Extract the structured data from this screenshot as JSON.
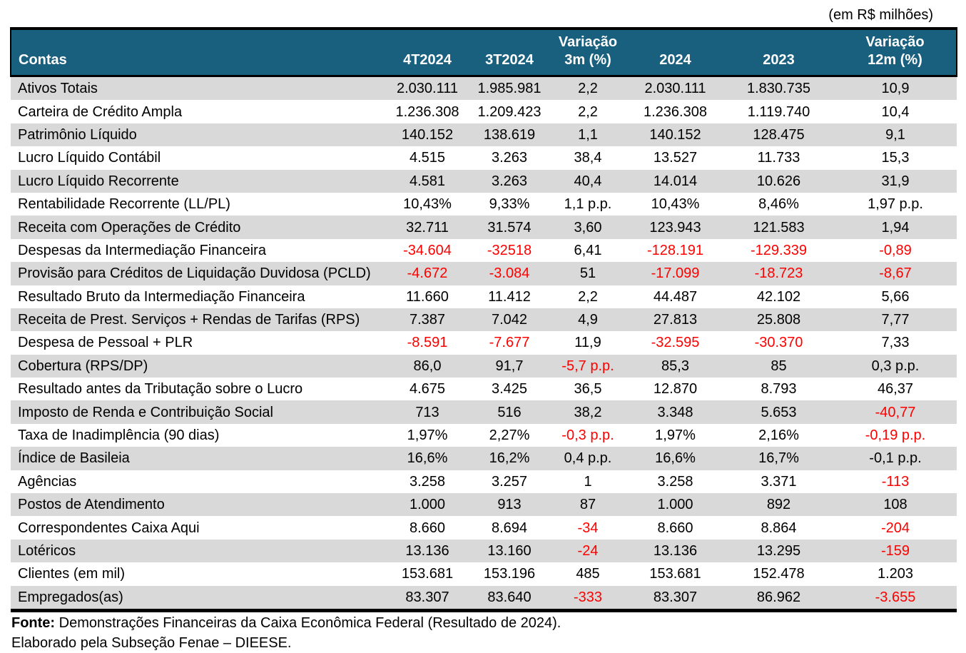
{
  "note": "(em R$ milhões)",
  "colors": {
    "header_bg": "#19607F",
    "header_text": "#FFFFFF",
    "row_alt_bg": "#D9D9D9",
    "negative_text": "#FF0000",
    "border": "#000000"
  },
  "table": {
    "headers": [
      "Contas",
      "4T2024",
      "3T2024",
      "Variação\n3m (%)",
      "2024",
      "2023",
      "Variação\n12m (%)"
    ],
    "rows": [
      {
        "label": "Ativos Totais",
        "values": [
          "2.030.111",
          "1.985.981",
          "2,2",
          "2.030.111",
          "1.830.735",
          "10,9"
        ],
        "red": []
      },
      {
        "label": "Carteira de Crédito Ampla",
        "values": [
          "1.236.308",
          "1.209.423",
          "2,2",
          "1.236.308",
          "1.119.740",
          "10,4"
        ],
        "red": []
      },
      {
        "label": "Patrimônio Líquido",
        "values": [
          "140.152",
          "138.619",
          "1,1",
          "140.152",
          "128.475",
          "9,1"
        ],
        "red": []
      },
      {
        "label": "Lucro Líquido Contábil",
        "values": [
          "4.515",
          "3.263",
          "38,4",
          "13.527",
          "11.733",
          "15,3"
        ],
        "red": []
      },
      {
        "label": "Lucro Líquido Recorrente",
        "values": [
          "4.581",
          "3.263",
          "40,4",
          "14.014",
          "10.626",
          "31,9"
        ],
        "red": []
      },
      {
        "label": "Rentabilidade Recorrente (LL/PL)",
        "values": [
          "10,43%",
          "9,33%",
          "1,1 p.p.",
          "10,43%",
          "8,46%",
          "1,97 p.p."
        ],
        "red": []
      },
      {
        "label": "Receita com Operações de Crédito",
        "values": [
          "32.711",
          "31.574",
          "3,60",
          "123.943",
          "121.583",
          "1,94"
        ],
        "red": []
      },
      {
        "label": "Despesas da Intermediação Financeira",
        "values": [
          "-34.604",
          "-32518",
          "6,41",
          "-128.191",
          "-129.339",
          "-0,89"
        ],
        "red": [
          0,
          1,
          3,
          4,
          5
        ]
      },
      {
        "label": "Provisão para Créditos de Liquidação Duvidosa (PCLD)",
        "values": [
          "-4.672",
          "-3.084",
          "51",
          "-17.099",
          "-18.723",
          "-8,67"
        ],
        "red": [
          0,
          1,
          3,
          4,
          5
        ]
      },
      {
        "label": "Resultado Bruto da Intermediação Financeira",
        "values": [
          "11.660",
          "11.412",
          "2,2",
          "44.487",
          "42.102",
          "5,66"
        ],
        "red": []
      },
      {
        "label": "Receita de Prest. Serviços + Rendas de Tarifas (RPS)",
        "values": [
          "7.387",
          "7.042",
          "4,9",
          "27.813",
          "25.808",
          "7,77"
        ],
        "red": []
      },
      {
        "label": "Despesa de Pessoal + PLR",
        "values": [
          "-8.591",
          "-7.677",
          "11,9",
          "-32.595",
          "-30.370",
          "7,33"
        ],
        "red": [
          0,
          1,
          3,
          4
        ]
      },
      {
        "label": "Cobertura (RPS/DP)",
        "values": [
          "86,0",
          "91,7",
          "-5,7 p.p.",
          "85,3",
          "85",
          "0,3 p.p."
        ],
        "red": [
          2
        ]
      },
      {
        "label": "Resultado antes da Tributação sobre o Lucro",
        "values": [
          "4.675",
          "3.425",
          "36,5",
          "12.870",
          "8.793",
          "46,37"
        ],
        "red": []
      },
      {
        "label": "Imposto de Renda e Contribuição Social",
        "values": [
          "713",
          "516",
          "38,2",
          "3.348",
          "5.653",
          "-40,77"
        ],
        "red": [
          5
        ]
      },
      {
        "label": "Taxa de Inadimplência (90 dias)",
        "values": [
          "1,97%",
          "2,27%",
          "-0,3 p.p.",
          "1,97%",
          "2,16%",
          "-0,19 p.p."
        ],
        "red": [
          2,
          5
        ]
      },
      {
        "label": "Índice de Basileia",
        "values": [
          "16,6%",
          "16,2%",
          "0,4 p.p.",
          "16,6%",
          "16,7%",
          "-0,1 p.p."
        ],
        "red": []
      },
      {
        "label": "Agências",
        "values": [
          "3.258",
          "3.257",
          "1",
          "3.258",
          "3.371",
          "-113"
        ],
        "red": [
          5
        ]
      },
      {
        "label": "Postos de Atendimento",
        "values": [
          "1.000",
          "913",
          "87",
          "1.000",
          "892",
          "108"
        ],
        "red": []
      },
      {
        "label": "Correspondentes Caixa Aqui",
        "values": [
          "8.660",
          "8.694",
          "-34",
          "8.660",
          "8.864",
          "-204"
        ],
        "red": [
          2,
          5
        ]
      },
      {
        "label": "Lotéricos",
        "values": [
          "13.136",
          "13.160",
          "-24",
          "13.136",
          "13.295",
          "-159"
        ],
        "red": [
          2,
          5
        ]
      },
      {
        "label": "Clientes (em mil)",
        "values": [
          "153.681",
          "153.196",
          "485",
          "153.681",
          "152.478",
          "1.203"
        ],
        "red": []
      },
      {
        "label": "Empregados(as)",
        "values": [
          "83.307",
          "83.640",
          "-333",
          "83.307",
          "86.962",
          "-3.655"
        ],
        "red": [
          2,
          5
        ]
      }
    ]
  },
  "footer": {
    "source_label": "Fonte:",
    "source_text": " Demonstrações Financeiras da Caixa Econômica Federal (Resultado de 2024).",
    "elaboration": "Elaborado pela Subseção Fenae – DIEESE."
  }
}
